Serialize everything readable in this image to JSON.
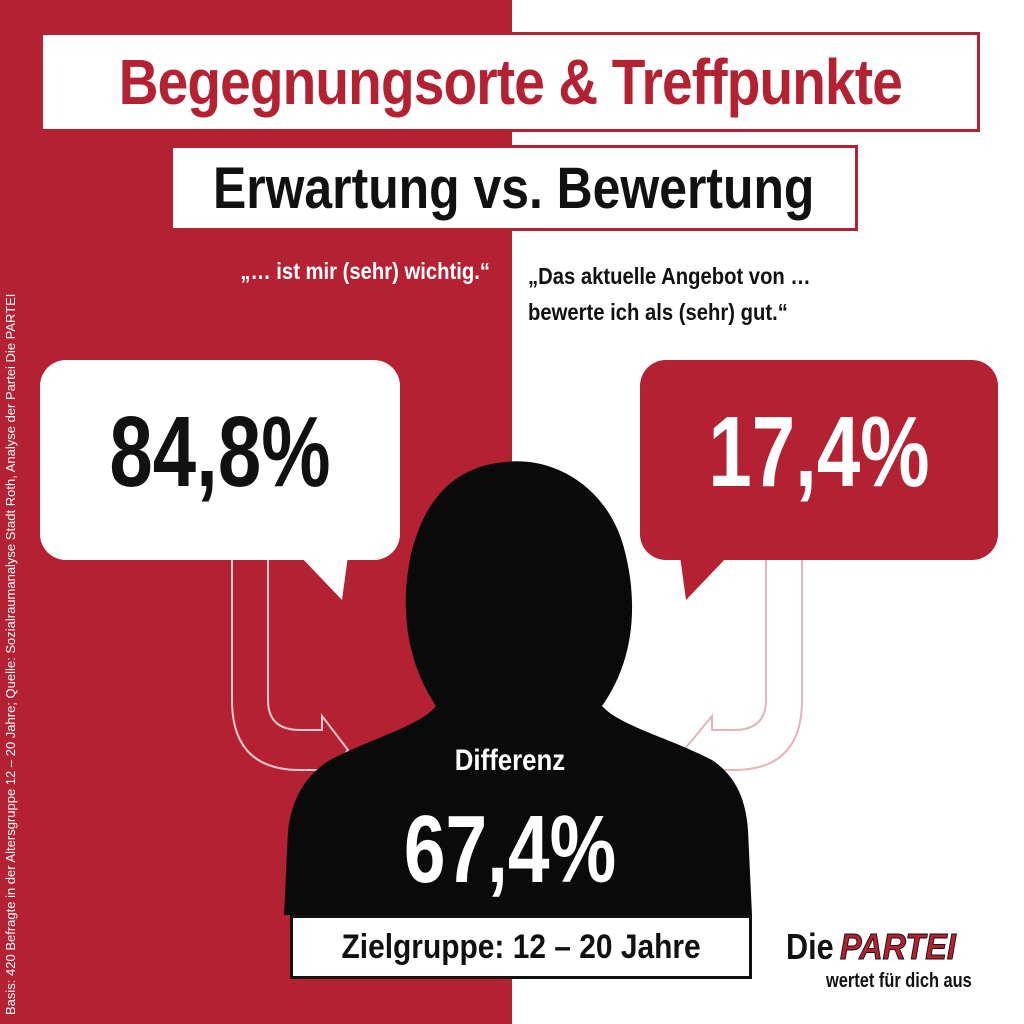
{
  "title": "Begegnungsorte & Treffpunkte",
  "subtitle": "Erwartung vs. Bewertung",
  "quote_left": "„… ist mir (sehr) wichtig.“",
  "quote_right_line1": "„Das aktuelle Angebot von …",
  "quote_right_line2": "bewerte ich als (sehr) gut.“",
  "value_left": "84,8%",
  "value_right": "17,4%",
  "difference_label": "Differenz",
  "difference_value": "67,4%",
  "target_group": "Zielgruppe: 12 – 20 Jahre",
  "source_note": "Basis: 420 Befragte in der Altersgruppe  12 – 20 Jahre; Quelle:  Sozialraumanalyse  Stadt Roth, Analyse der Partei Die PARTEI",
  "logo": {
    "die": "Die",
    "partei": "PARTEI",
    "tagline": "wertet für dich aus"
  },
  "colors": {
    "accent": "#b42133",
    "dark": "#111111",
    "light": "#ffffff"
  }
}
